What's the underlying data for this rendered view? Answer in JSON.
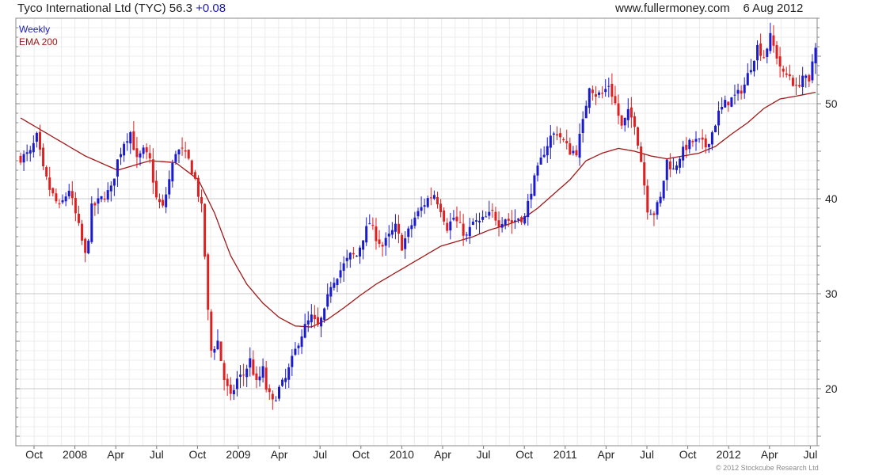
{
  "header": {
    "name": "Tyco International Ltd (TYC)",
    "last": "56.3",
    "change": "+0.08",
    "site": "www.fullermoney.com",
    "date": "6 Aug 2012"
  },
  "legend": {
    "period": "Weekly",
    "ema": "EMA 200"
  },
  "copyright": "© 2012 Stockcube Research Ltd",
  "colors": {
    "up": "#1a1ad0",
    "down": "#e02020",
    "ema": "#a01818",
    "grid_major": "#c8c8c8",
    "grid_minor": "#ececec"
  },
  "chart_data": {
    "type": "candlestick",
    "period": "Weekly",
    "ylim": [
      14,
      59
    ],
    "y_ticks": [
      20,
      30,
      40,
      50
    ],
    "x_tick_labels": [
      "Oct",
      "2008",
      "Apr",
      "Jul",
      "Oct",
      "2009",
      "Apr",
      "Jul",
      "Oct",
      "2010",
      "Apr",
      "Jul",
      "Oct",
      "2011",
      "Apr",
      "Jul",
      "Oct",
      "2012",
      "Apr",
      "Jul"
    ],
    "grid": true,
    "close_anchors": [
      [
        0,
        44.3
      ],
      [
        3,
        44.8
      ],
      [
        5,
        46.5
      ],
      [
        7,
        43
      ],
      [
        9,
        41
      ],
      [
        12,
        39
      ],
      [
        15,
        41
      ],
      [
        18,
        37
      ],
      [
        20,
        34
      ],
      [
        21,
        36
      ],
      [
        22,
        39
      ],
      [
        25,
        40
      ],
      [
        28,
        41
      ],
      [
        30,
        44
      ],
      [
        32,
        46
      ],
      [
        34,
        47
      ],
      [
        36,
        44
      ],
      [
        38,
        45
      ],
      [
        40,
        44
      ],
      [
        42,
        40
      ],
      [
        44,
        39
      ],
      [
        46,
        42
      ],
      [
        48,
        45
      ],
      [
        50,
        45
      ],
      [
        52,
        44
      ],
      [
        54,
        42
      ],
      [
        56,
        39
      ],
      [
        57,
        34
      ],
      [
        58,
        28
      ],
      [
        59,
        24
      ],
      [
        61,
        25
      ],
      [
        63,
        21
      ],
      [
        65,
        19
      ],
      [
        67,
        21
      ],
      [
        69,
        21.5
      ],
      [
        71,
        23
      ],
      [
        73,
        20.5
      ],
      [
        75,
        22
      ],
      [
        76,
        20
      ],
      [
        78,
        18.5
      ],
      [
        80,
        20
      ],
      [
        82,
        21
      ],
      [
        84,
        23
      ],
      [
        86,
        25
      ],
      [
        88,
        26.5
      ],
      [
        90,
        27.5
      ],
      [
        92,
        26.5
      ],
      [
        94,
        28
      ],
      [
        96,
        31
      ],
      [
        98,
        32
      ],
      [
        100,
        33
      ],
      [
        102,
        34
      ],
      [
        104,
        34
      ],
      [
        106,
        36
      ],
      [
        108,
        37.5
      ],
      [
        110,
        36
      ],
      [
        112,
        35
      ],
      [
        114,
        36
      ],
      [
        116,
        37
      ],
      [
        118,
        35
      ],
      [
        120,
        36.5
      ],
      [
        122,
        38
      ],
      [
        124,
        39
      ],
      [
        126,
        40
      ],
      [
        128,
        40.5
      ],
      [
        130,
        39
      ],
      [
        132,
        37
      ],
      [
        134,
        38
      ],
      [
        136,
        37
      ],
      [
        138,
        36
      ],
      [
        140,
        37.5
      ],
      [
        142,
        37.5
      ],
      [
        144,
        38
      ],
      [
        146,
        38.5
      ],
      [
        148,
        37.5
      ],
      [
        150,
        38
      ],
      [
        152,
        37.5
      ],
      [
        154,
        38
      ],
      [
        156,
        38
      ],
      [
        158,
        41
      ],
      [
        160,
        43
      ],
      [
        162,
        45
      ],
      [
        164,
        46.5
      ],
      [
        166,
        47
      ],
      [
        168,
        46
      ],
      [
        170,
        45
      ],
      [
        172,
        45
      ],
      [
        174,
        48
      ],
      [
        176,
        52
      ],
      [
        178,
        51
      ],
      [
        180,
        51
      ],
      [
        182,
        52
      ],
      [
        184,
        50
      ],
      [
        186,
        47.5
      ],
      [
        188,
        49
      ],
      [
        190,
        48
      ],
      [
        192,
        44
      ],
      [
        194,
        39
      ],
      [
        196,
        38.5
      ],
      [
        198,
        40
      ],
      [
        200,
        44
      ],
      [
        202,
        43
      ],
      [
        204,
        44.5
      ],
      [
        206,
        45.5
      ],
      [
        208,
        46
      ],
      [
        210,
        46
      ],
      [
        212,
        45.5
      ],
      [
        214,
        47
      ],
      [
        216,
        49
      ],
      [
        218,
        50
      ],
      [
        220,
        50.5
      ],
      [
        222,
        51
      ],
      [
        224,
        52
      ],
      [
        226,
        54
      ],
      [
        228,
        56
      ],
      [
        230,
        55
      ],
      [
        232,
        57
      ],
      [
        234,
        55
      ],
      [
        236,
        53
      ],
      [
        238,
        53
      ],
      [
        240,
        51.5
      ],
      [
        242,
        53
      ],
      [
        244,
        52
      ],
      [
        245,
        54.5
      ],
      [
        246,
        56.3
      ]
    ],
    "ema_anchors": [
      [
        0,
        48.5
      ],
      [
        10,
        46.5
      ],
      [
        20,
        44.5
      ],
      [
        30,
        43
      ],
      [
        40,
        44
      ],
      [
        48,
        43.8
      ],
      [
        55,
        42
      ],
      [
        60,
        38.5
      ],
      [
        65,
        34
      ],
      [
        70,
        31
      ],
      [
        75,
        29
      ],
      [
        80,
        27.5
      ],
      [
        85,
        26.6
      ],
      [
        90,
        26.5
      ],
      [
        95,
        27.3
      ],
      [
        100,
        28.5
      ],
      [
        105,
        29.8
      ],
      [
        110,
        31
      ],
      [
        115,
        32
      ],
      [
        120,
        33
      ],
      [
        125,
        34
      ],
      [
        130,
        35
      ],
      [
        135,
        35.5
      ],
      [
        140,
        36
      ],
      [
        145,
        36.7
      ],
      [
        150,
        37.2
      ],
      [
        155,
        37.8
      ],
      [
        160,
        39
      ],
      [
        165,
        40.5
      ],
      [
        170,
        42
      ],
      [
        175,
        44
      ],
      [
        180,
        44.8
      ],
      [
        185,
        45.3
      ],
      [
        190,
        45
      ],
      [
        195,
        44.5
      ],
      [
        200,
        44.2
      ],
      [
        205,
        44.5
      ],
      [
        210,
        44.8
      ],
      [
        215,
        45.5
      ],
      [
        220,
        46.8
      ],
      [
        225,
        48
      ],
      [
        230,
        49.5
      ],
      [
        235,
        50.5
      ],
      [
        240,
        50.8
      ],
      [
        246,
        51.2
      ]
    ]
  }
}
